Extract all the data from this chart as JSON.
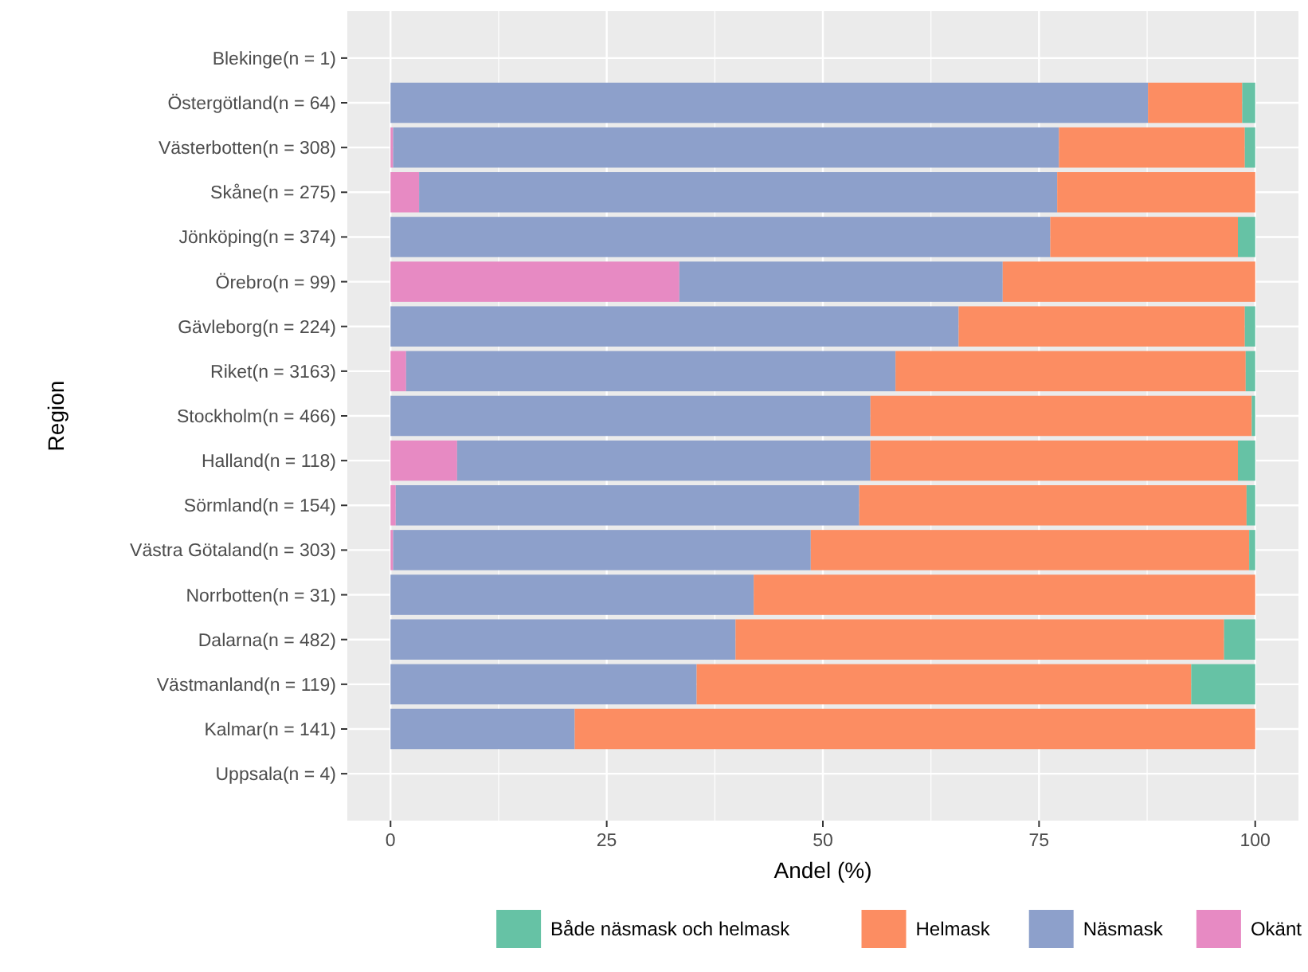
{
  "chart_data": {
    "type": "bar",
    "orientation": "horizontal",
    "stacked": true,
    "xlabel": "Andel (%)",
    "ylabel": "Region",
    "categories": [
      "Blekinge(n = 1)",
      "Östergötland(n = 64)",
      "Västerbotten(n = 308)",
      "Skåne(n = 275)",
      "Jönköping(n = 374)",
      "Örebro(n = 99)",
      "Gävleborg(n = 224)",
      "Riket(n = 3163)",
      "Stockholm(n = 466)",
      "Halland(n = 118)",
      "Sörmland(n = 154)",
      "Västra Götaland(n = 303)",
      "Norrbotten(n = 31)",
      "Dalarna(n = 482)",
      "Västmanland(n = 119)",
      "Kalmar(n = 141)",
      "Uppsala(n = 4)"
    ],
    "series": [
      {
        "name": "Okänt",
        "color": "#e78ac3",
        "values": [
          null,
          0,
          0.3,
          3.3,
          0,
          33.4,
          0,
          1.8,
          0,
          7.7,
          0.6,
          0.3,
          0,
          0,
          0,
          0,
          null
        ]
      },
      {
        "name": "Näsmask",
        "color": "#8da0cb",
        "values": [
          null,
          87.6,
          77.0,
          73.8,
          76.3,
          37.4,
          65.7,
          56.6,
          55.5,
          47.8,
          53.6,
          48.3,
          42.0,
          39.9,
          35.4,
          21.3,
          null
        ]
      },
      {
        "name": "Helmask",
        "color": "#fc8d62",
        "values": [
          null,
          10.9,
          21.5,
          22.9,
          21.7,
          29.2,
          33.1,
          40.5,
          44.1,
          42.5,
          44.8,
          50.7,
          58.0,
          56.5,
          57.2,
          78.7,
          null
        ]
      },
      {
        "name": "Både näsmask och helmask",
        "color": "#66c2a5",
        "values": [
          null,
          1.5,
          1.2,
          0,
          2.0,
          0,
          1.2,
          1.1,
          0.4,
          2.0,
          1.0,
          0.7,
          0,
          3.6,
          7.4,
          0,
          null
        ]
      }
    ],
    "xlim": [
      -5,
      105
    ],
    "xticks": [
      0,
      25,
      50,
      75,
      100
    ],
    "grid": true,
    "legend": "bottom"
  }
}
